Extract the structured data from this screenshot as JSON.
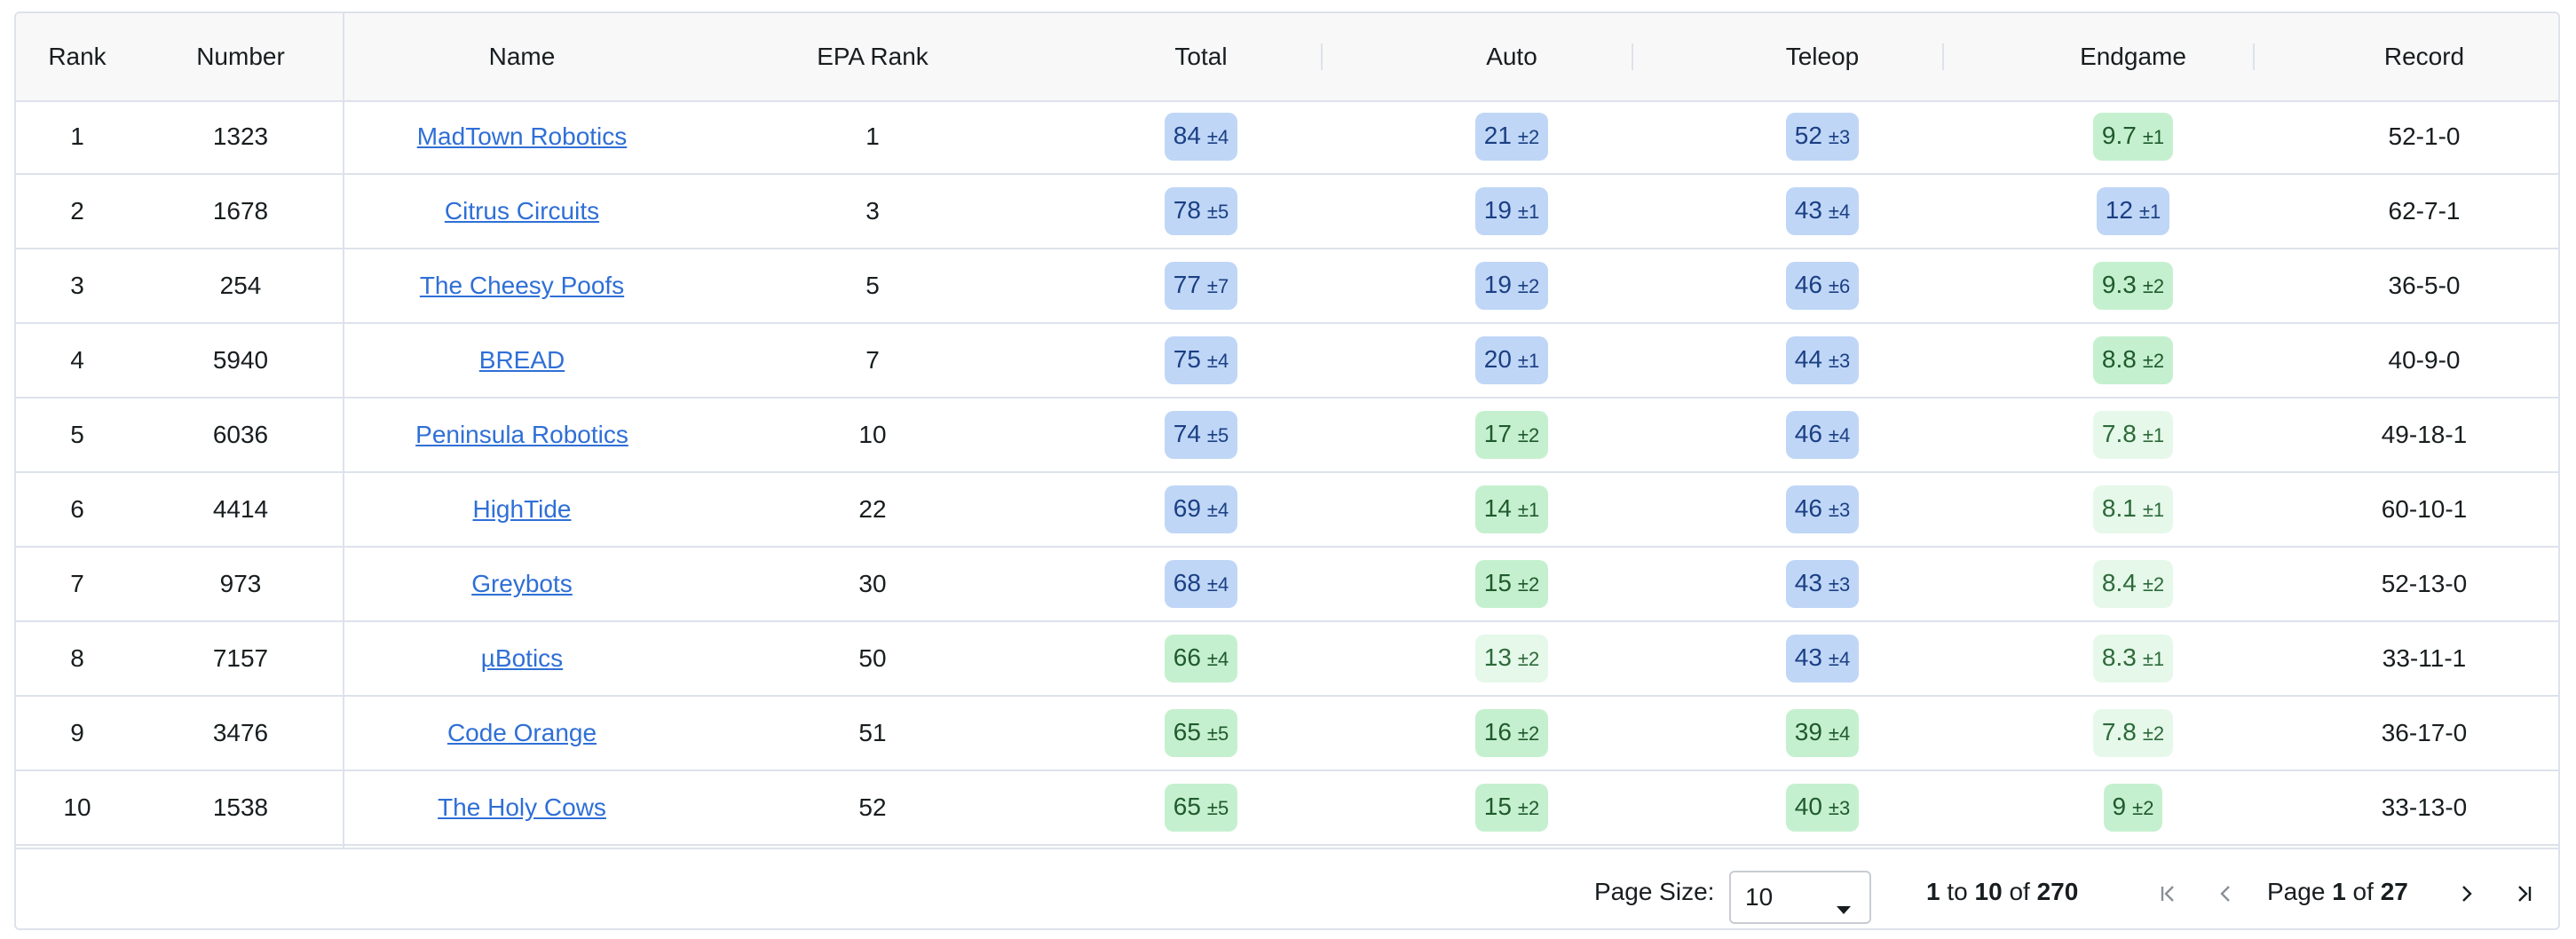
{
  "columns": {
    "rank": "Rank",
    "number": "Number",
    "name": "Name",
    "epa_rank": "EPA Rank",
    "total": "Total",
    "auto": "Auto",
    "teleop": "Teleop",
    "endgame": "Endgame",
    "record": "Record"
  },
  "rows": [
    {
      "rank": "1",
      "number": "1323",
      "name": "MadTown Robotics",
      "epa_rank": "1",
      "total": {
        "value": "84",
        "err": "±4",
        "tone": "blue"
      },
      "auto": {
        "value": "21",
        "err": "±2",
        "tone": "blue"
      },
      "teleop": {
        "value": "52",
        "err": "±3",
        "tone": "blue"
      },
      "endgame": {
        "value": "9.7",
        "err": "±1",
        "tone": "green"
      },
      "record": "52-1-0"
    },
    {
      "rank": "2",
      "number": "1678",
      "name": "Citrus Circuits",
      "epa_rank": "3",
      "total": {
        "value": "78",
        "err": "±5",
        "tone": "blue"
      },
      "auto": {
        "value": "19",
        "err": "±1",
        "tone": "blue"
      },
      "teleop": {
        "value": "43",
        "err": "±4",
        "tone": "blue"
      },
      "endgame": {
        "value": "12",
        "err": "±1",
        "tone": "blue"
      },
      "record": "62-7-1"
    },
    {
      "rank": "3",
      "number": "254",
      "name": "The Cheesy Poofs",
      "epa_rank": "5",
      "total": {
        "value": "77",
        "err": "±7",
        "tone": "blue"
      },
      "auto": {
        "value": "19",
        "err": "±2",
        "tone": "blue"
      },
      "teleop": {
        "value": "46",
        "err": "±6",
        "tone": "blue"
      },
      "endgame": {
        "value": "9.3",
        "err": "±2",
        "tone": "green"
      },
      "record": "36-5-0"
    },
    {
      "rank": "4",
      "number": "5940",
      "name": "BREAD",
      "epa_rank": "7",
      "total": {
        "value": "75",
        "err": "±4",
        "tone": "blue"
      },
      "auto": {
        "value": "20",
        "err": "±1",
        "tone": "blue"
      },
      "teleop": {
        "value": "44",
        "err": "±3",
        "tone": "blue"
      },
      "endgame": {
        "value": "8.8",
        "err": "±2",
        "tone": "green"
      },
      "record": "40-9-0"
    },
    {
      "rank": "5",
      "number": "6036",
      "name": "Peninsula Robotics",
      "epa_rank": "10",
      "total": {
        "value": "74",
        "err": "±5",
        "tone": "blue"
      },
      "auto": {
        "value": "17",
        "err": "±2",
        "tone": "green"
      },
      "teleop": {
        "value": "46",
        "err": "±4",
        "tone": "blue"
      },
      "endgame": {
        "value": "7.8",
        "err": "±1",
        "tone": "lightgreen"
      },
      "record": "49-18-1"
    },
    {
      "rank": "6",
      "number": "4414",
      "name": "HighTide",
      "epa_rank": "22",
      "total": {
        "value": "69",
        "err": "±4",
        "tone": "blue"
      },
      "auto": {
        "value": "14",
        "err": "±1",
        "tone": "green"
      },
      "teleop": {
        "value": "46",
        "err": "±3",
        "tone": "blue"
      },
      "endgame": {
        "value": "8.1",
        "err": "±1",
        "tone": "lightgreen"
      },
      "record": "60-10-1"
    },
    {
      "rank": "7",
      "number": "973",
      "name": "Greybots",
      "epa_rank": "30",
      "total": {
        "value": "68",
        "err": "±4",
        "tone": "blue"
      },
      "auto": {
        "value": "15",
        "err": "±2",
        "tone": "green"
      },
      "teleop": {
        "value": "43",
        "err": "±3",
        "tone": "blue"
      },
      "endgame": {
        "value": "8.4",
        "err": "±2",
        "tone": "lightgreen"
      },
      "record": "52-13-0"
    },
    {
      "rank": "8",
      "number": "7157",
      "name": "µBotics",
      "epa_rank": "50",
      "total": {
        "value": "66",
        "err": "±4",
        "tone": "green"
      },
      "auto": {
        "value": "13",
        "err": "±2",
        "tone": "lightgreen"
      },
      "teleop": {
        "value": "43",
        "err": "±4",
        "tone": "blue"
      },
      "endgame": {
        "value": "8.3",
        "err": "±1",
        "tone": "lightgreen"
      },
      "record": "33-11-1"
    },
    {
      "rank": "9",
      "number": "3476",
      "name": "Code Orange",
      "epa_rank": "51",
      "total": {
        "value": "65",
        "err": "±5",
        "tone": "green"
      },
      "auto": {
        "value": "16",
        "err": "±2",
        "tone": "green"
      },
      "teleop": {
        "value": "39",
        "err": "±4",
        "tone": "green"
      },
      "endgame": {
        "value": "7.8",
        "err": "±2",
        "tone": "lightgreen"
      },
      "record": "36-17-0"
    },
    {
      "rank": "10",
      "number": "1538",
      "name": "The Holy Cows",
      "epa_rank": "52",
      "total": {
        "value": "65",
        "err": "±5",
        "tone": "green"
      },
      "auto": {
        "value": "15",
        "err": "±2",
        "tone": "green"
      },
      "teleop": {
        "value": "40",
        "err": "±3",
        "tone": "green"
      },
      "endgame": {
        "value": "9",
        "err": "±2",
        "tone": "green"
      },
      "record": "33-13-0"
    }
  ],
  "footer": {
    "page_size_label": "Page Size:",
    "page_size_value": "10",
    "range_from": "1",
    "range_to_word": "to",
    "range_to": "10",
    "range_of_word": "of",
    "range_total": "270",
    "page_word": "Page",
    "page_current": "1",
    "page_of_word": "of",
    "page_total": "27"
  },
  "icons": {
    "first": "first-page-icon",
    "prev": "previous-page-icon",
    "next": "next-page-icon",
    "last": "last-page-icon",
    "caret": "chevron-down-icon"
  },
  "colors": {
    "blue_badge": "#bfd6f6",
    "green_badge": "#c5f0cf",
    "lightgreen_badge": "#e5f8e9",
    "link": "#2f6fd6",
    "border": "#dde2eb"
  }
}
